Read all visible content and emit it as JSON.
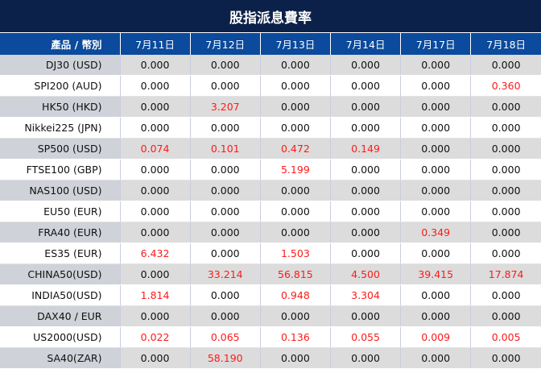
{
  "title": "股指派息費率",
  "headers": [
    "產品 / 幣別",
    "7月11日",
    "7月12日",
    "7月13日",
    "7月14日",
    "7月17日",
    "7月18日"
  ],
  "colors": {
    "title_bg": "#0b2149",
    "header_bg": "#0b4a9c",
    "positive": "#ff1a1a"
  },
  "rows": [
    {
      "product": "DJ30 (USD)",
      "values": [
        "0.000",
        "0.000",
        "0.000",
        "0.000",
        "0.000",
        "0.000"
      ]
    },
    {
      "product": "SPI200 (AUD)",
      "values": [
        "0.000",
        "0.000",
        "0.000",
        "0.000",
        "0.000",
        "0.360"
      ]
    },
    {
      "product": "HK50 (HKD)",
      "values": [
        "0.000",
        "3.207",
        "0.000",
        "0.000",
        "0.000",
        "0.000"
      ]
    },
    {
      "product": "Nikkei225 (JPN)",
      "values": [
        "0.000",
        "0.000",
        "0.000",
        "0.000",
        "0.000",
        "0.000"
      ]
    },
    {
      "product": "SP500 (USD)",
      "values": [
        "0.074",
        "0.101",
        "0.472",
        "0.149",
        "0.000",
        "0.000"
      ]
    },
    {
      "product": "FTSE100 (GBP)",
      "values": [
        "0.000",
        "0.000",
        "5.199",
        "0.000",
        "0.000",
        "0.000"
      ]
    },
    {
      "product": "NAS100 (USD)",
      "values": [
        "0.000",
        "0.000",
        "0.000",
        "0.000",
        "0.000",
        "0.000"
      ]
    },
    {
      "product": "EU50 (EUR)",
      "values": [
        "0.000",
        "0.000",
        "0.000",
        "0.000",
        "0.000",
        "0.000"
      ]
    },
    {
      "product": "FRA40 (EUR)",
      "values": [
        "0.000",
        "0.000",
        "0.000",
        "0.000",
        "0.349",
        "0.000"
      ]
    },
    {
      "product": "ES35 (EUR)",
      "values": [
        "6.432",
        "0.000",
        "1.503",
        "0.000",
        "0.000",
        "0.000"
      ]
    },
    {
      "product": "CHINA50(USD)",
      "values": [
        "0.000",
        "33.214",
        "56.815",
        "4.500",
        "39.415",
        "17.874"
      ]
    },
    {
      "product": "INDIA50(USD)",
      "values": [
        "1.814",
        "0.000",
        "0.948",
        "3.304",
        "0.000",
        "0.000"
      ]
    },
    {
      "product": "DAX40 / EUR",
      "values": [
        "0.000",
        "0.000",
        "0.000",
        "0.000",
        "0.000",
        "0.000"
      ]
    },
    {
      "product": "US2000(USD)",
      "values": [
        "0.022",
        "0.065",
        "0.136",
        "0.055",
        "0.009",
        "0.005"
      ]
    },
    {
      "product": "SA40(ZAR)",
      "values": [
        "0.000",
        "58.190",
        "0.000",
        "0.000",
        "0.000",
        "0.000"
      ]
    }
  ]
}
